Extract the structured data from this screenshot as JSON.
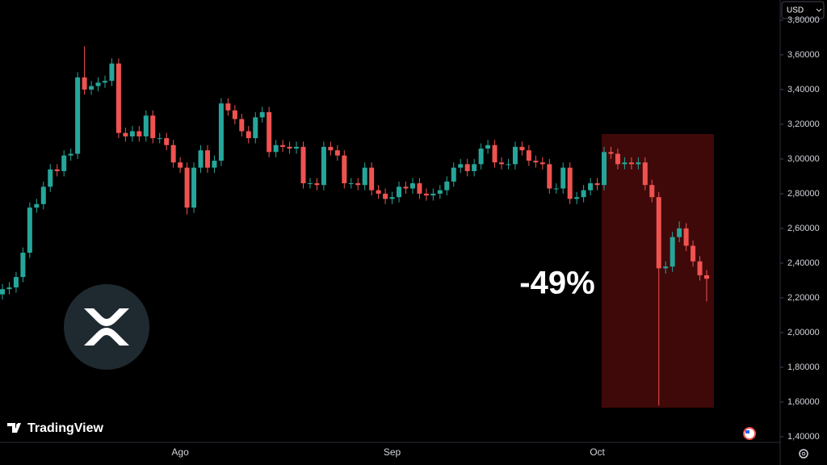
{
  "chart_data": {
    "type": "candlestick",
    "currency": "USD",
    "annotation": "-49%",
    "watermark": "TradingView",
    "up_color": "#26a69a",
    "down_color": "#ef5350",
    "categories": [
      null,
      null,
      null,
      null,
      null,
      null,
      null,
      null,
      null,
      null,
      null,
      null,
      null,
      null,
      null,
      null,
      null,
      null,
      null,
      null,
      null,
      null,
      null,
      null,
      null,
      null,
      "Ago",
      null,
      null,
      null,
      null,
      null,
      null,
      null,
      null,
      null,
      null,
      null,
      null,
      null,
      null,
      null,
      null,
      null,
      null,
      null,
      null,
      null,
      null,
      null,
      null,
      null,
      null,
      null,
      null,
      null,
      null,
      "Sep",
      null,
      null,
      null,
      null,
      null,
      null,
      null,
      null,
      null,
      null,
      null,
      null,
      null,
      null,
      null,
      null,
      null,
      null,
      null,
      null,
      null,
      null,
      null,
      null,
      null,
      null,
      null,
      null,
      null,
      "Oct",
      null,
      null,
      null,
      null,
      null,
      null,
      null,
      null,
      null,
      null,
      null,
      null,
      null,
      null,
      null,
      null
    ],
    "open": [
      2.22,
      2.25,
      2.26,
      2.32,
      2.46,
      2.72,
      2.74,
      2.84,
      2.94,
      2.93,
      3.02,
      3.03,
      3.47,
      3.4,
      3.42,
      3.44,
      3.45,
      3.55,
      3.15,
      3.13,
      3.16,
      3.13,
      3.25,
      3.12,
      3.12,
      3.08,
      2.98,
      2.95,
      2.72,
      2.95,
      3.05,
      2.95,
      2.99,
      3.32,
      3.28,
      3.23,
      3.16,
      3.12,
      3.24,
      3.27,
      3.04,
      3.08,
      3.07,
      3.06,
      3.07,
      2.86,
      2.86,
      2.85,
      3.07,
      3.05,
      3.02,
      2.86,
      2.86,
      2.85,
      2.95,
      2.82,
      2.8,
      2.77,
      2.78,
      2.84,
      2.83,
      2.86,
      2.8,
      2.79,
      2.8,
      2.82,
      2.87,
      2.95,
      2.97,
      2.93,
      2.97,
      3.06,
      3.08,
      2.98,
      2.97,
      2.97,
      3.07,
      3.05,
      2.99,
      2.98,
      2.97,
      2.83,
      2.83,
      2.95,
      2.77,
      2.78,
      2.82,
      2.86,
      2.85,
      3.04,
      3.03,
      2.97,
      2.98,
      2.97,
      2.98,
      2.85,
      2.78,
      2.37,
      2.38,
      2.55,
      2.6,
      2.5,
      2.41,
      2.33
    ],
    "high": [
      2.28,
      2.29,
      2.35,
      2.49,
      2.75,
      2.77,
      2.87,
      2.97,
      2.97,
      3.05,
      3.06,
      3.5,
      3.65,
      3.45,
      3.47,
      3.48,
      3.58,
      3.58,
      3.18,
      3.19,
      3.19,
      3.28,
      3.28,
      3.15,
      3.15,
      3.11,
      3.01,
      2.98,
      2.98,
      3.08,
      3.08,
      3.02,
      3.35,
      3.35,
      3.31,
      3.26,
      3.19,
      3.27,
      3.3,
      3.3,
      3.11,
      3.11,
      3.1,
      3.1,
      3.1,
      2.89,
      2.89,
      3.1,
      3.1,
      3.08,
      3.05,
      2.89,
      2.89,
      2.98,
      2.98,
      2.85,
      2.83,
      2.81,
      2.87,
      2.87,
      2.89,
      2.89,
      2.83,
      2.83,
      2.85,
      2.9,
      2.98,
      3.0,
      3.0,
      3.0,
      3.09,
      3.11,
      3.11,
      3.01,
      3.0,
      3.1,
      3.1,
      3.08,
      3.02,
      3.01,
      3.0,
      2.86,
      2.98,
      2.98,
      2.81,
      2.85,
      2.89,
      2.89,
      3.07,
      3.07,
      3.06,
      3.01,
      3.01,
      3.01,
      3.01,
      2.88,
      2.81,
      2.41,
      2.58,
      2.64,
      2.63,
      2.53,
      2.44,
      2.36
    ],
    "low": [
      2.19,
      2.22,
      2.23,
      2.29,
      2.43,
      2.69,
      2.71,
      2.81,
      2.9,
      2.9,
      2.99,
      3.0,
      3.37,
      3.37,
      3.39,
      3.41,
      3.42,
      3.12,
      3.1,
      3.1,
      3.1,
      3.1,
      3.09,
      3.09,
      3.05,
      2.95,
      2.92,
      2.68,
      2.69,
      2.92,
      2.92,
      2.92,
      2.96,
      3.25,
      3.2,
      3.13,
      3.09,
      3.09,
      3.21,
      3.01,
      3.01,
      3.04,
      3.03,
      3.03,
      2.83,
      2.83,
      2.82,
      2.82,
      3.02,
      2.99,
      2.83,
      2.83,
      2.82,
      2.82,
      2.79,
      2.77,
      2.74,
      2.74,
      2.75,
      2.8,
      2.8,
      2.77,
      2.76,
      2.76,
      2.77,
      2.79,
      2.84,
      2.92,
      2.9,
      2.9,
      2.94,
      3.03,
      2.95,
      2.94,
      2.94,
      2.94,
      3.02,
      2.96,
      2.95,
      2.94,
      2.8,
      2.8,
      2.8,
      2.74,
      2.74,
      2.75,
      2.79,
      2.82,
      2.82,
      3.0,
      2.94,
      2.94,
      2.94,
      2.94,
      2.82,
      2.75,
      1.58,
      2.34,
      2.35,
      2.52,
      2.47,
      2.38,
      2.3,
      2.18
    ],
    "close": [
      2.25,
      2.26,
      2.32,
      2.46,
      2.72,
      2.74,
      2.84,
      2.94,
      2.93,
      3.02,
      3.03,
      3.47,
      3.4,
      3.42,
      3.44,
      3.45,
      3.55,
      3.15,
      3.13,
      3.16,
      3.13,
      3.25,
      3.12,
      3.12,
      3.08,
      2.98,
      2.95,
      2.72,
      2.95,
      3.05,
      2.95,
      2.99,
      3.32,
      3.28,
      3.23,
      3.16,
      3.12,
      3.24,
      3.27,
      3.04,
      3.08,
      3.07,
      3.06,
      3.07,
      2.86,
      2.86,
      2.85,
      3.07,
      3.05,
      3.02,
      2.86,
      2.86,
      2.85,
      2.95,
      2.82,
      2.8,
      2.77,
      2.78,
      2.84,
      2.83,
      2.86,
      2.8,
      2.79,
      2.8,
      2.82,
      2.87,
      2.95,
      2.97,
      2.93,
      2.97,
      3.06,
      3.08,
      2.98,
      2.97,
      2.97,
      3.07,
      3.05,
      2.99,
      2.98,
      2.97,
      2.83,
      2.83,
      2.95,
      2.77,
      2.78,
      2.82,
      2.86,
      2.85,
      3.04,
      3.03,
      2.97,
      2.98,
      2.97,
      2.98,
      2.85,
      2.78,
      2.37,
      2.38,
      2.55,
      2.6,
      2.5,
      2.41,
      2.33,
      2.31
    ],
    "ylim": [
      1.367,
      3.916
    ],
    "yticks": [
      {
        "value": 1.4,
        "label": "1,40000"
      },
      {
        "value": 1.6,
        "label": "1,60000"
      },
      {
        "value": 1.8,
        "label": "1,80000"
      },
      {
        "value": 2.0,
        "label": "2,00000"
      },
      {
        "value": 2.2,
        "label": "2,20000"
      },
      {
        "value": 2.4,
        "label": "2,40000"
      },
      {
        "value": 2.6,
        "label": "2,60000"
      },
      {
        "value": 2.8,
        "label": "2,80000"
      },
      {
        "value": 3.0,
        "label": "3,00000"
      },
      {
        "value": 3.2,
        "label": "3,20000"
      },
      {
        "value": 3.4,
        "label": "3,40000"
      },
      {
        "value": 3.6,
        "label": "3,60000"
      },
      {
        "value": 3.8,
        "label": "3,80000"
      }
    ]
  }
}
